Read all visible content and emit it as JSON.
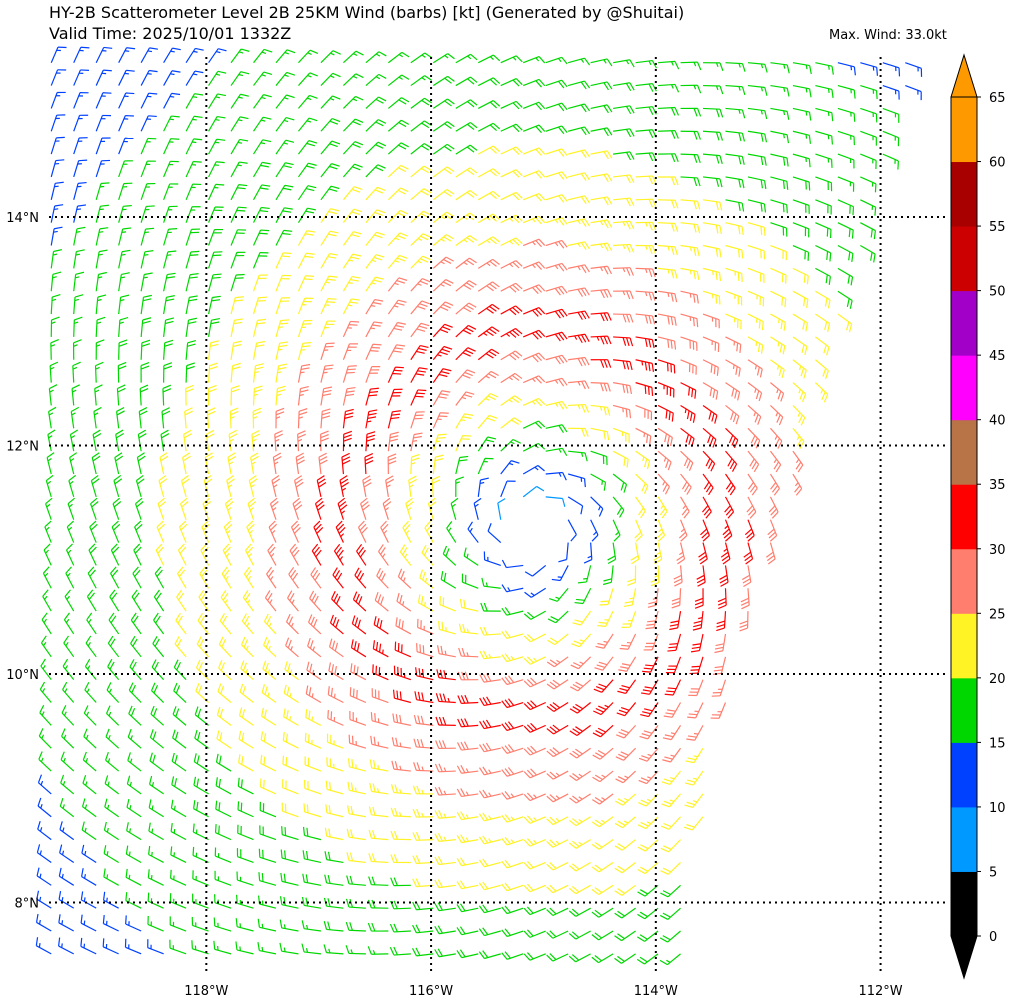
{
  "header": {
    "title_line1": "HY-2B Scatterometer Level 2B 25KM Wind (barbs) [kt] (Generated by @Shuitai)",
    "title_line2": "Valid Time: 2025/10/01 1332Z",
    "max_wind": "Max. Wind: 33.0kt"
  },
  "chart_data": {
    "type": "wind_barb_map",
    "title": "HY-2B Scatterometer Level 2B 25KM Wind (barbs) [kt] (Generated by @Shuitai)",
    "subtitle": "Valid Time: 2025/10/01 1332Z",
    "units": "kt",
    "max_wind_kt": 33.0,
    "x_range_lon": [
      -119.4,
      -111.4
    ],
    "y_range_lat": [
      7.4,
      15.4
    ],
    "grid": true,
    "x_ticks": [
      {
        "lon": -118,
        "label": "118°W"
      },
      {
        "lon": -116,
        "label": "116°W"
      },
      {
        "lon": -114,
        "label": "114°W"
      },
      {
        "lon": -112,
        "label": "112°W"
      }
    ],
    "y_ticks": [
      {
        "lat": 8,
        "label": "8°N"
      },
      {
        "lat": 10,
        "label": "10°N"
      },
      {
        "lat": 12,
        "label": "12°N"
      },
      {
        "lat": 14,
        "label": "14°N"
      }
    ],
    "cyclone_center": {
      "lon": -115.1,
      "lat": 11.3
    },
    "swath_east_edge": [
      {
        "lat": 15.4,
        "lon": -111.7
      },
      {
        "lat": 14.0,
        "lon": -112.1
      },
      {
        "lat": 12.0,
        "lon": -112.7
      },
      {
        "lat": 10.0,
        "lon": -113.3
      },
      {
        "lat": 8.0,
        "lon": -113.7
      },
      {
        "lat": 7.4,
        "lon": -113.8
      }
    ],
    "colorbar": {
      "levels": [
        0,
        5,
        10,
        15,
        20,
        25,
        30,
        35,
        40,
        45,
        50,
        55,
        60,
        65
      ],
      "colors": [
        "#000000",
        "#0099ff",
        "#0041ff",
        "#00d700",
        "#fff225",
        "#ff7e6e",
        "#ff0000",
        "#b87447",
        "#ff00ff",
        "#a200c8",
        "#cc0000",
        "#a80000",
        "#ff9900"
      ],
      "extend": "both"
    }
  }
}
